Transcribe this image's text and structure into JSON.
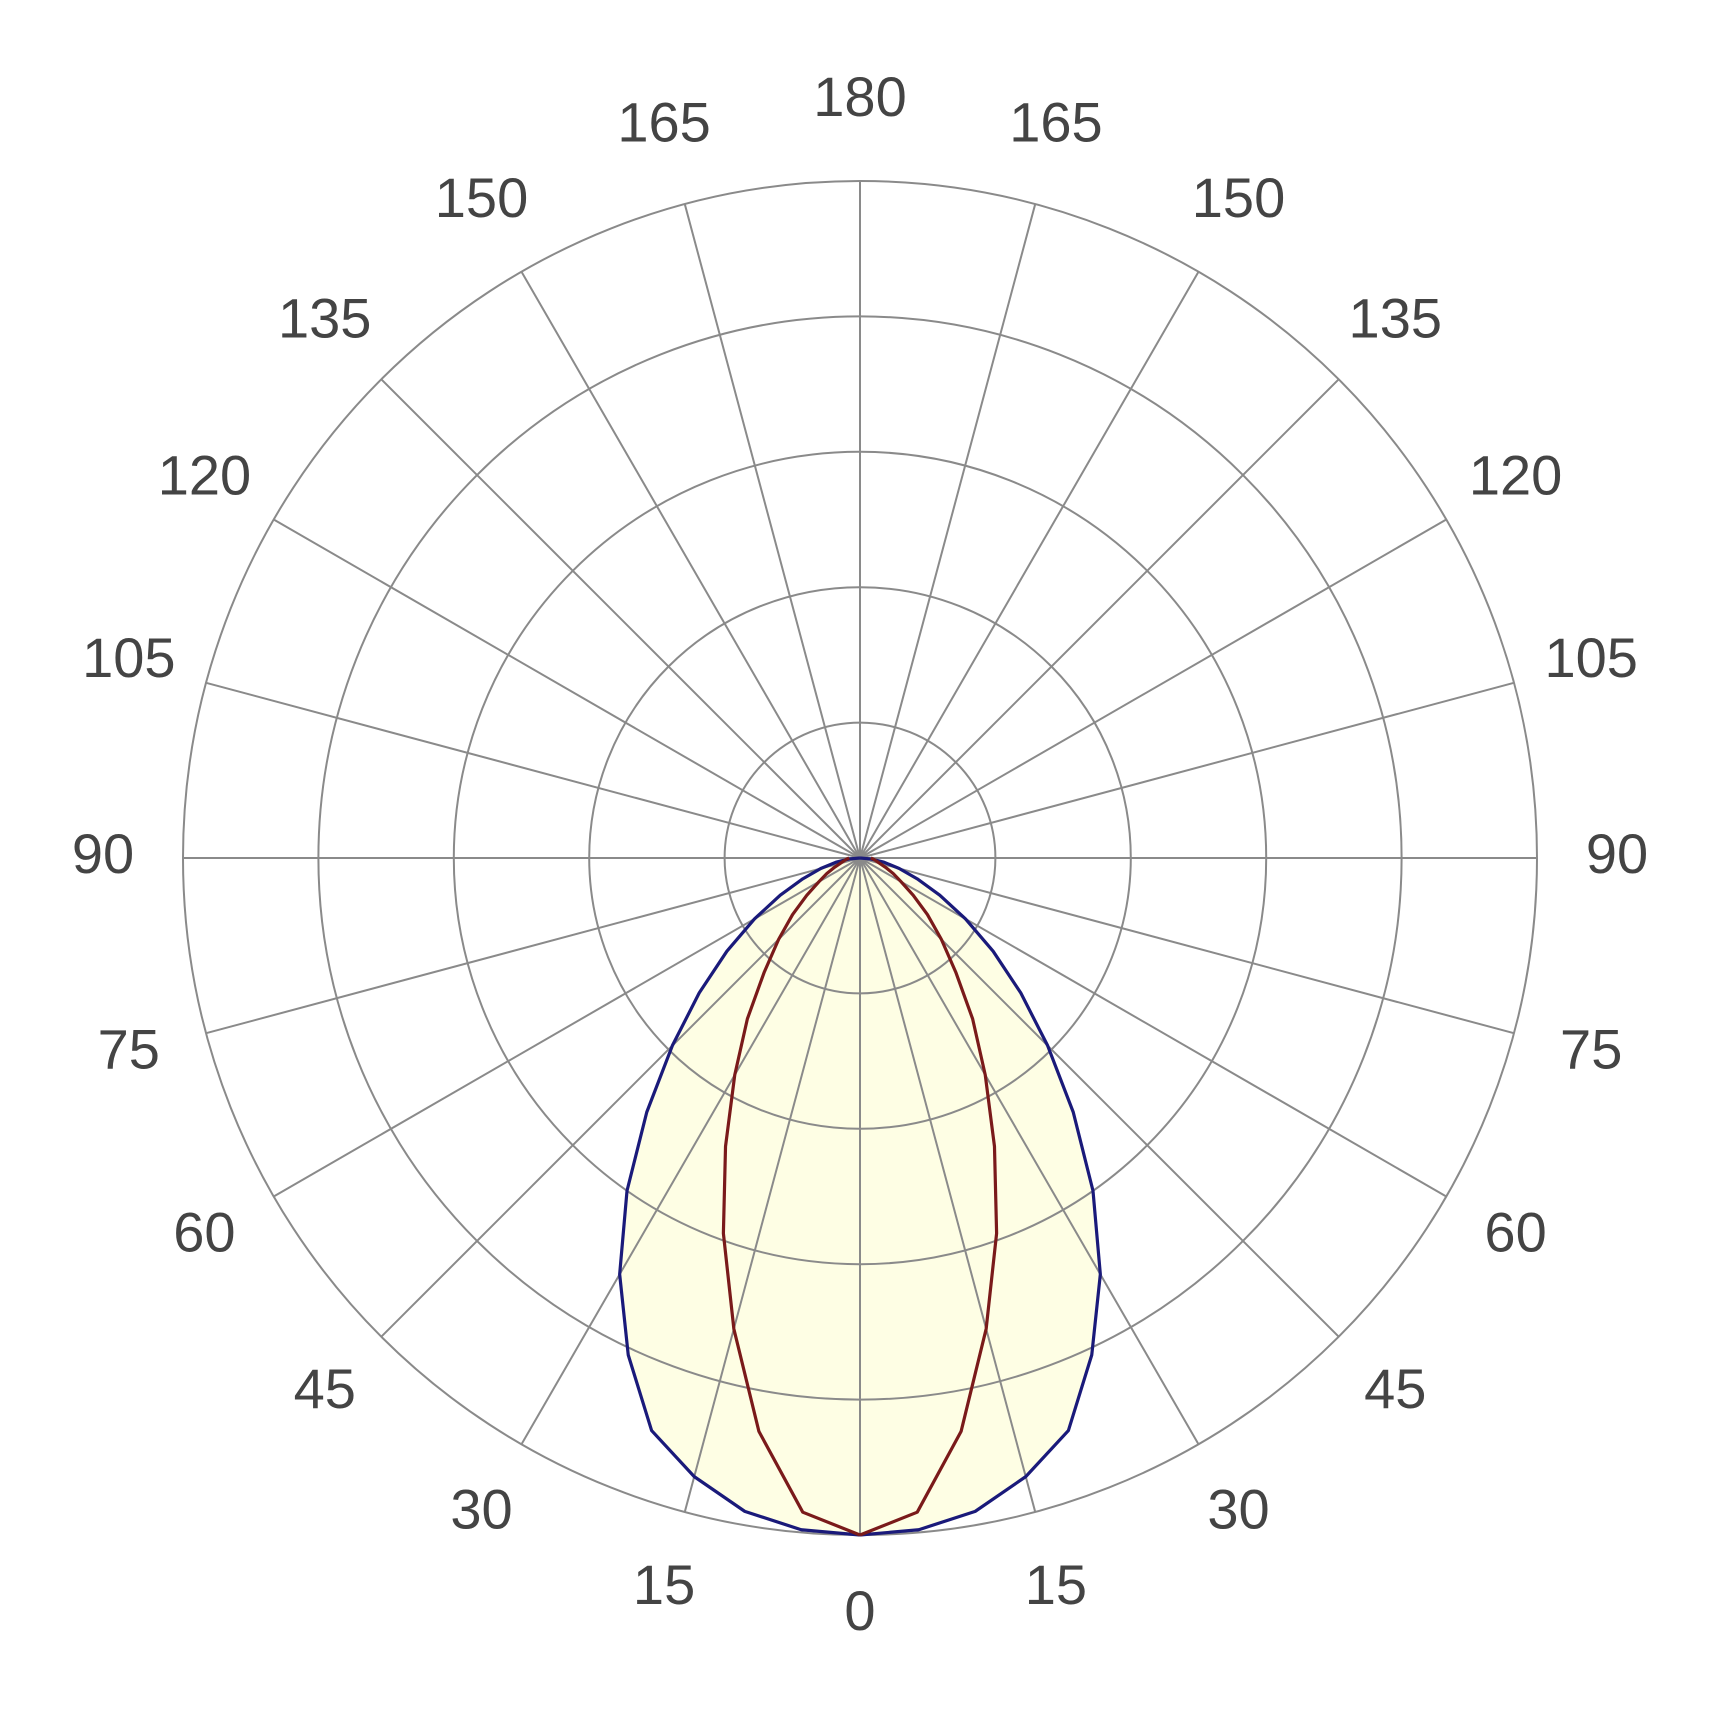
{
  "chart_data": {
    "type": "polar",
    "angle_ticks": [
      0,
      15,
      30,
      45,
      60,
      75,
      90,
      105,
      120,
      135,
      150,
      165,
      180
    ],
    "rlim": [
      0,
      5
    ],
    "rticks": [
      1,
      2,
      3,
      4,
      5
    ],
    "angles": [
      0,
      5,
      10,
      15,
      20,
      25,
      30,
      35,
      40,
      45,
      50,
      55,
      60,
      65,
      70,
      75,
      80,
      85,
      90
    ],
    "fill_color": "#fefee4",
    "series": [
      {
        "color": "#1a1a7a",
        "values": [
          5.0,
          4.98,
          4.9,
          4.73,
          4.5,
          4.05,
          3.55,
          3.0,
          2.45,
          1.96,
          1.55,
          1.2,
          0.9,
          0.65,
          0.45,
          0.3,
          0.18,
          0.08,
          0
        ]
      },
      {
        "color": "#7a1a1a",
        "values": [
          5.0,
          4.85,
          4.3,
          3.6,
          2.95,
          2.35,
          1.85,
          1.45,
          1.1,
          0.85,
          0.65,
          0.48,
          0.35,
          0.27,
          0.2,
          0.15,
          0.12,
          0.1,
          0.08
        ]
      }
    ]
  }
}
